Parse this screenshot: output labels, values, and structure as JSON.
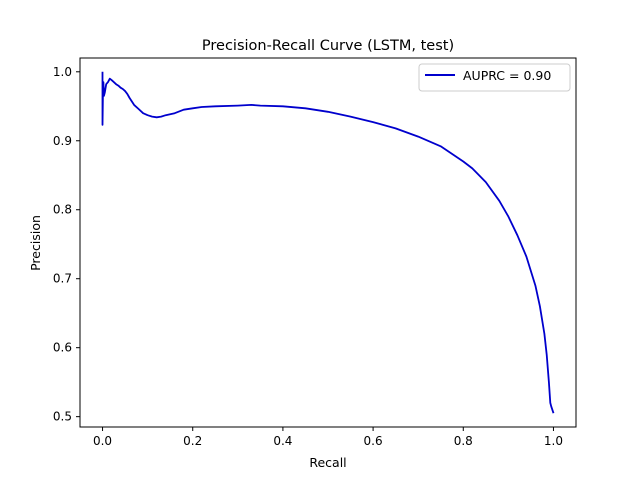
{
  "chart_data": {
    "type": "line",
    "title": "Precision-Recall Curve (LSTM, test)",
    "xlabel": "Recall",
    "ylabel": "Precision",
    "xlim": [
      -0.05,
      1.05
    ],
    "ylim": [
      0.485,
      1.02
    ],
    "x_ticks": [
      "0.0",
      "0.2",
      "0.4",
      "0.6",
      "0.8",
      "1.0"
    ],
    "y_ticks": [
      "0.5",
      "0.6",
      "0.7",
      "0.8",
      "0.9",
      "1.0"
    ],
    "grid": false,
    "legend_position": "upper right",
    "series": [
      {
        "name": "AUPRC = 0.90",
        "color": "#0000cd",
        "x": [
          0.0,
          0.0,
          0.001,
          0.002,
          0.003,
          0.005,
          0.008,
          0.012,
          0.016,
          0.02,
          0.025,
          0.03,
          0.035,
          0.04,
          0.045,
          0.05,
          0.055,
          0.06,
          0.07,
          0.08,
          0.09,
          0.1,
          0.11,
          0.12,
          0.13,
          0.14,
          0.16,
          0.18,
          0.2,
          0.22,
          0.25,
          0.3,
          0.33,
          0.35,
          0.4,
          0.45,
          0.5,
          0.55,
          0.6,
          0.65,
          0.7,
          0.75,
          0.8,
          0.82,
          0.85,
          0.88,
          0.9,
          0.92,
          0.94,
          0.96,
          0.97,
          0.98,
          0.985,
          0.99,
          0.993,
          0.995,
          1.0
        ],
        "y": [
          1.0,
          0.923,
          0.975,
          0.985,
          0.965,
          0.97,
          0.982,
          0.985,
          0.99,
          0.988,
          0.985,
          0.982,
          0.98,
          0.977,
          0.975,
          0.972,
          0.968,
          0.962,
          0.952,
          0.946,
          0.94,
          0.937,
          0.935,
          0.934,
          0.935,
          0.937,
          0.94,
          0.945,
          0.947,
          0.949,
          0.95,
          0.951,
          0.952,
          0.951,
          0.95,
          0.947,
          0.942,
          0.935,
          0.927,
          0.918,
          0.906,
          0.892,
          0.87,
          0.86,
          0.84,
          0.813,
          0.79,
          0.763,
          0.732,
          0.69,
          0.66,
          0.62,
          0.59,
          0.55,
          0.52,
          0.515,
          0.505
        ]
      }
    ]
  }
}
